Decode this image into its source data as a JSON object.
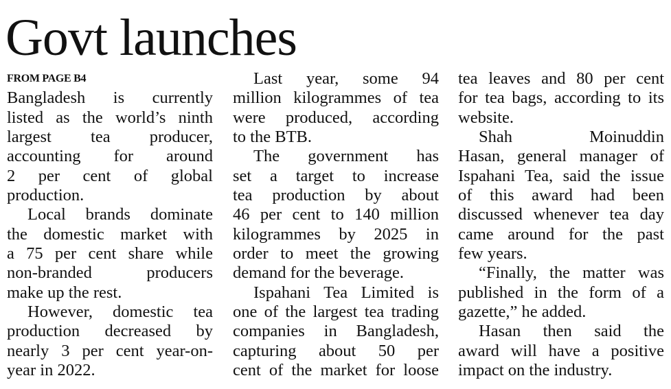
{
  "headline": "Govt launches",
  "kicker": "FROM PAGE B4",
  "columns": [
    [
      {
        "lines": [
          "Bangladesh is currently",
          "listed as the world’s ninth",
          "largest tea producer,",
          "accounting for around",
          "2 per cent of global",
          "production."
        ],
        "indent": false
      },
      {
        "lines": [
          "Local brands dominate",
          "the domestic market with",
          "a 75 per cent share while",
          "non-branded producers",
          "make up the rest."
        ],
        "indent": true
      },
      {
        "lines": [
          "However, domestic tea",
          "production decreased by",
          "nearly 3 per cent year-on-",
          "year in 2022."
        ],
        "indent": true
      }
    ],
    [
      {
        "lines": [
          "Last year, some 94",
          "million kilogrammes of tea",
          "were produced, according",
          "to the BTB."
        ],
        "indent": true
      },
      {
        "lines": [
          "The government has",
          "set a target to increase",
          "tea production by about",
          "46 per cent to 140 million",
          "kilogrammes by 2025 in",
          "order to meet the growing",
          "demand for the beverage."
        ],
        "indent": true
      },
      {
        "lines": [
          "Ispahani Tea Limited is",
          "one of the largest tea trading",
          "companies in Bangladesh,",
          "capturing about 50 per",
          "cent of the market for loose"
        ],
        "indent": true,
        "continues": true
      }
    ],
    [
      {
        "lines": [
          "tea leaves and 80 per cent",
          "for tea bags, according to its",
          "website."
        ],
        "indent": false
      },
      {
        "lines": [
          "Shah Moinuddin",
          "Hasan, general manager of",
          "Ispahani Tea, said the issue",
          "of this award had been",
          "discussed whenever tea day",
          "came around for the past",
          "few years."
        ],
        "indent": true
      },
      {
        "lines": [
          "“Finally, the matter was",
          "published in the form of a",
          "gazette,” he added."
        ],
        "indent": true
      },
      {
        "lines": [
          "Hasan then said the",
          "award will have a positive",
          "impact on the industry."
        ],
        "indent": true
      }
    ]
  ]
}
